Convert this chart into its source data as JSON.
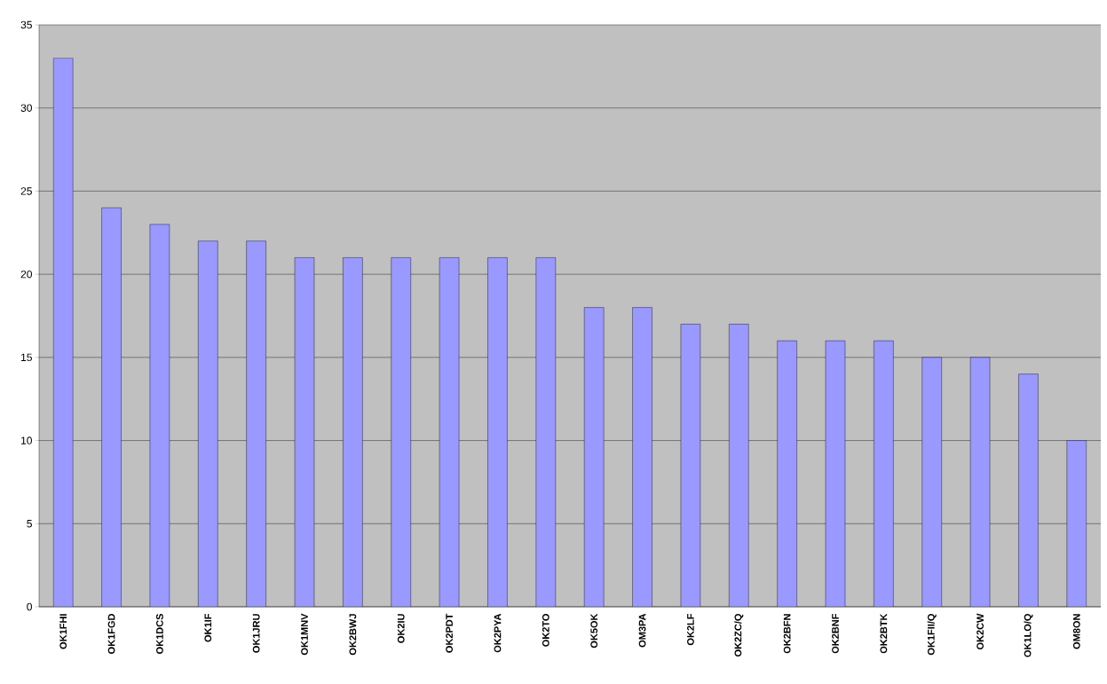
{
  "chart_data": {
    "type": "bar",
    "categories": [
      "OK1FHI",
      "OK1FGD",
      "OK1DCS",
      "OK1IF",
      "OK1JRU",
      "OK1MNV",
      "OK2BWJ",
      "OK2IU",
      "OK2PDT",
      "OK2PYA",
      "OK2TO",
      "OK5OK",
      "OM3PA",
      "OK2LF",
      "OK2ZC/Q",
      "OK2BFN",
      "OK2BNF",
      "OK2BTK",
      "OK1FII/Q",
      "OK2CW",
      "OK1LO/Q",
      "OM8ON"
    ],
    "values": [
      33,
      24,
      23,
      22,
      22,
      21,
      21,
      21,
      21,
      21,
      21,
      18,
      18,
      17,
      17,
      16,
      16,
      16,
      15,
      15,
      14,
      10
    ],
    "color": "#9999ff",
    "ylim": [
      0,
      35
    ],
    "yticks": [
      0,
      5,
      10,
      15,
      20,
      25,
      30,
      35
    ],
    "grid": "y"
  }
}
